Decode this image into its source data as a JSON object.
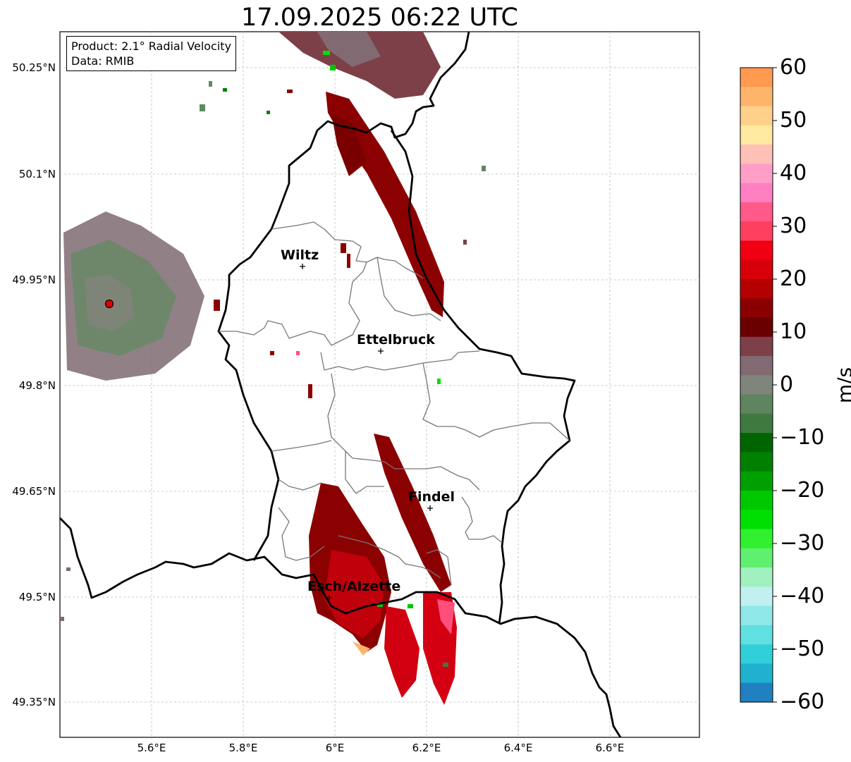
{
  "title": "17.09.2025 06:22 UTC",
  "info": {
    "product": "Product: 2.1° Radial Velocity",
    "data": "Data: RMIB"
  },
  "axes": {
    "y_ticks": [
      "50.25°N",
      "50.1°N",
      "49.95°N",
      "49.8°N",
      "49.65°N",
      "49.5°N",
      "49.35°N"
    ],
    "x_ticks": [
      "5.6°E",
      "5.8°E",
      "6°E",
      "6.2°E",
      "6.4°E",
      "6.6°E"
    ]
  },
  "cities": [
    {
      "name": "Wiltz"
    },
    {
      "name": "Ettelbruck"
    },
    {
      "name": "Findel"
    },
    {
      "name": "Esch/Alzette"
    }
  ],
  "colorbar": {
    "unit": "m/s",
    "min": -60,
    "max": 60,
    "ticks": [
      "60",
      "50",
      "40",
      "30",
      "20",
      "10",
      "0",
      "−10",
      "−20",
      "−30",
      "−40",
      "−50",
      "−60"
    ],
    "colors_top_to_bottom": [
      "#ff9a50",
      "#ffb46c",
      "#ffd08a",
      "#ffe8a0",
      "#ffc0b8",
      "#ff9fc8",
      "#ff80c0",
      "#ff5a8a",
      "#ff3f60",
      "#f00010",
      "#d80008",
      "#b40000",
      "#8a0000",
      "#6a0000",
      "#7d4048",
      "#826a72",
      "#7f857a",
      "#5e8460",
      "#3e7a40",
      "#006400",
      "#008000",
      "#00a000",
      "#00c800",
      "#00e000",
      "#30f030",
      "#60f070",
      "#a0f0c0",
      "#c0f0f0",
      "#90e8e8",
      "#60e0e0",
      "#30d0d8",
      "#20b0d0",
      "#2080c0"
    ]
  },
  "colors": {
    "approaching_green": "#5f8a5f",
    "receding_red": "#8b0000",
    "strong_red": "#e0001a",
    "pink": "#ff4f7a",
    "mauve": "#7f6a72",
    "radar_site": "#e00000"
  }
}
